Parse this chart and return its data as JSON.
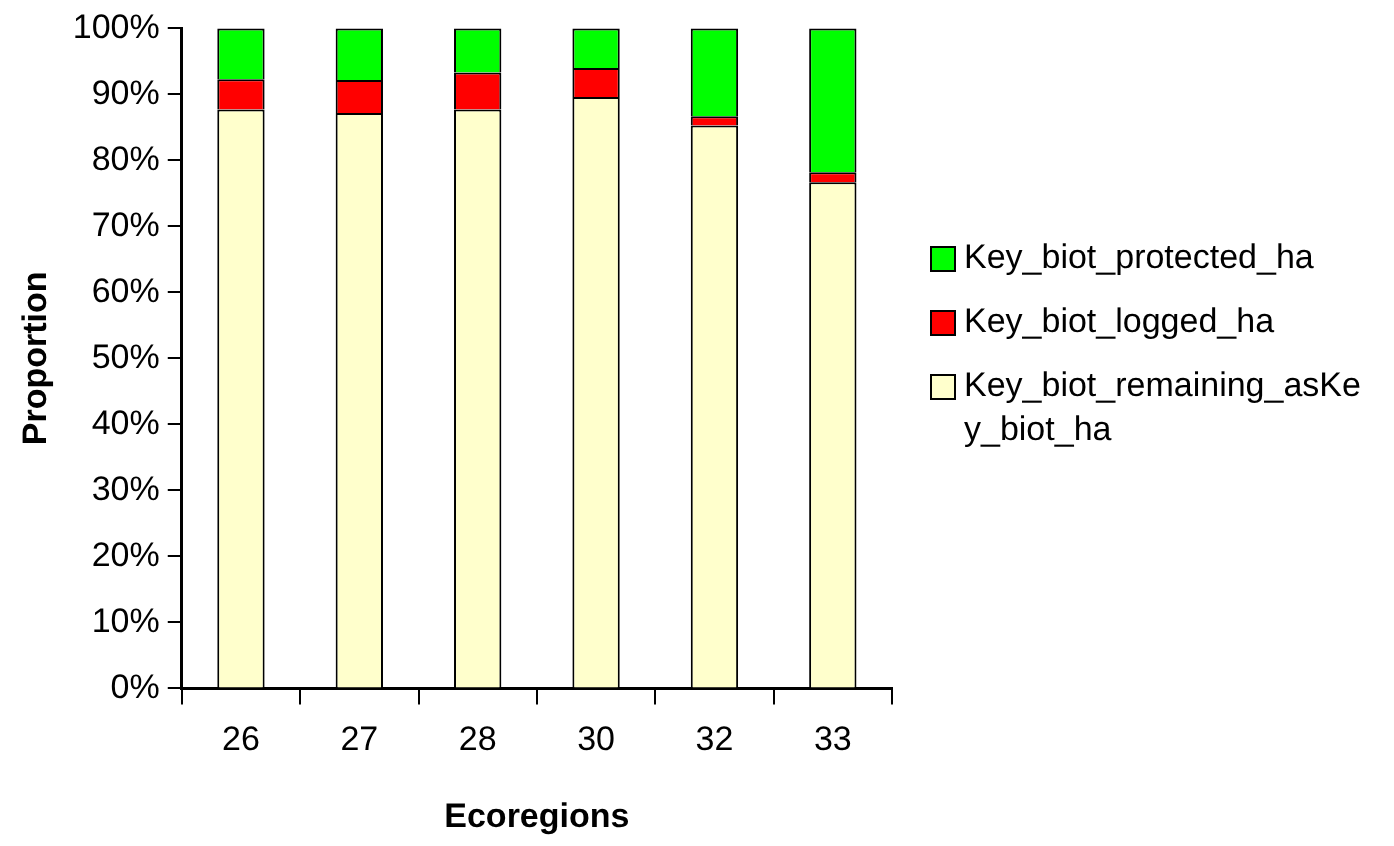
{
  "chart_data": {
    "type": "bar",
    "stacked": true,
    "xlabel": "Ecoregions",
    "ylabel": "Proportion",
    "categories": [
      "26",
      "27",
      "28",
      "30",
      "32",
      "33"
    ],
    "series": [
      {
        "name": "Key_biot_remaining_asKey_biot_ha",
        "color": "#ffffcc",
        "values": [
          87.7,
          87.2,
          87.7,
          89.6,
          85.3,
          76.7
        ]
      },
      {
        "name": "Key_biot_logged_ha",
        "color": "#ff0000",
        "values": [
          4.6,
          5.0,
          5.6,
          4.4,
          1.4,
          1.5
        ]
      },
      {
        "name": "Key_biot_protected_ha",
        "color": "#00ff00",
        "values": [
          7.7,
          7.8,
          6.7,
          6.0,
          13.3,
          21.8
        ]
      }
    ],
    "ylim": [
      0,
      100
    ],
    "yticks": [
      {
        "value": 0,
        "label": "0%"
      },
      {
        "value": 10,
        "label": "10%"
      },
      {
        "value": 20,
        "label": "20%"
      },
      {
        "value": 30,
        "label": "30%"
      },
      {
        "value": 40,
        "label": "40%"
      },
      {
        "value": 50,
        "label": "50%"
      },
      {
        "value": 60,
        "label": "60%"
      },
      {
        "value": 70,
        "label": "70%"
      },
      {
        "value": 80,
        "label": "80%"
      },
      {
        "value": 90,
        "label": "90%"
      },
      {
        "value": 100,
        "label": "100%"
      }
    ],
    "grid": false,
    "legend": "right"
  }
}
